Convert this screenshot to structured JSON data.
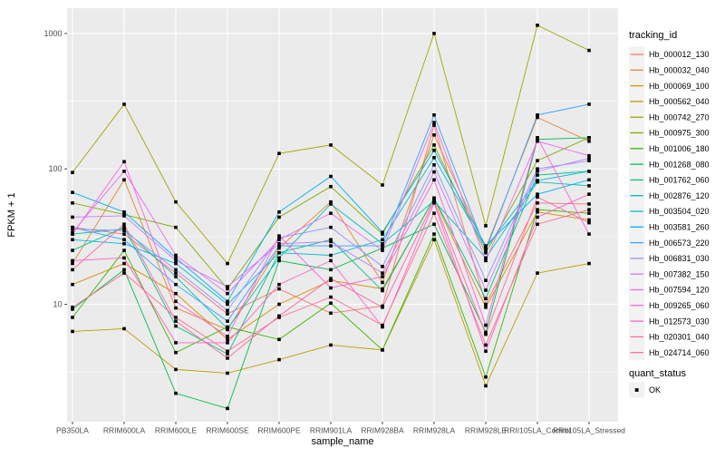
{
  "chart": {
    "y_axis_title": "FPKM + 1",
    "x_axis_title": "sample_name",
    "legend_title": "tracking_id",
    "legend2_title": "quant_status",
    "quant_status_label": "OK",
    "panel_bg": "#EBEBEB",
    "gridline_color": "#FFFFFF",
    "legend_key_bg": "#F2F2F2",
    "tick_label_color": "#4D4D4D",
    "point_color": "#000000"
  },
  "chart_data": {
    "type": "line",
    "x_scale": "categorical",
    "y_scale": "log10",
    "ylim": [
      1.4,
      1500
    ],
    "yticks": [
      10,
      100,
      1000
    ],
    "ytick_labels": [
      "10",
      "100",
      "1000"
    ],
    "grid": "on",
    "legend_position": "right",
    "title": "",
    "xlabel": "sample_name",
    "ylabel": "FPKM + 1",
    "categories": [
      "PB350LA",
      "RRIM600LA",
      "RRIM600LE",
      "RRIM600SE",
      "RRIM600PE",
      "RRIM901LA",
      "RRIM928BA",
      "RRIM928LA",
      "RRIM928LE",
      "RRII105LA_Control",
      "RRII105LA_Stressed"
    ],
    "quant_status_values": [
      "OK"
    ],
    "series": [
      {
        "name": "Hb_000012_130",
        "color": "#F8766D",
        "values": [
          37,
          33,
          17,
          8.5,
          13,
          8.6,
          9.7,
          210,
          10,
          56,
          55
        ]
      },
      {
        "name": "Hb_000032_040",
        "color": "#EA8331",
        "values": [
          20,
          83,
          9.4,
          6.5,
          26,
          57,
          14.5,
          178,
          26,
          240,
          160
        ]
      },
      {
        "name": "Hb_000069_100",
        "color": "#D89000",
        "values": [
          14,
          20,
          12,
          5.5,
          10,
          15,
          13,
          60,
          9.5,
          48,
          42
        ]
      },
      {
        "name": "Hb_000562_040",
        "color": "#C09B00",
        "values": [
          6.3,
          6.6,
          3.3,
          3.1,
          3.9,
          5.0,
          4.6,
          30,
          2.5,
          17,
          20
        ]
      },
      {
        "name": "Hb_000742_270",
        "color": "#A3A500",
        "values": [
          94,
          300,
          57,
          20,
          130,
          150,
          76,
          1000,
          38,
          1150,
          750
        ]
      },
      {
        "name": "Hb_000975_300",
        "color": "#7CAE00",
        "values": [
          56,
          46,
          37,
          13,
          44,
          74,
          33,
          150,
          24,
          115,
          170
        ]
      },
      {
        "name": "Hb_001006_180",
        "color": "#39B600",
        "values": [
          8,
          25,
          4.4,
          6.8,
          5.5,
          10.2,
          4.6,
          33,
          2.9,
          50,
          47
        ]
      },
      {
        "name": "Hb_001268_080",
        "color": "#00BB4E",
        "values": [
          9.2,
          18,
          2.2,
          1.7,
          21,
          18,
          26,
          39,
          6.2,
          165,
          170
        ]
      },
      {
        "name": "Hb_001762_060",
        "color": "#00C087",
        "values": [
          25,
          37,
          6.9,
          4.3,
          24,
          30,
          12.6,
          61,
          11,
          90,
          96
        ]
      },
      {
        "name": "Hb_002876_120",
        "color": "#00C0B5",
        "values": [
          33,
          36,
          16,
          6.6,
          22,
          55,
          28,
          58,
          22,
          80,
          75
        ]
      },
      {
        "name": "Hb_003504_020",
        "color": "#00BCD8",
        "values": [
          30,
          28,
          20,
          10,
          24,
          23,
          30,
          121,
          26,
          82,
          96
        ]
      },
      {
        "name": "Hb_003581_260",
        "color": "#00B0F6",
        "values": [
          67,
          48,
          22,
          10.5,
          48,
          88,
          34,
          137,
          27,
          65,
          83
        ]
      },
      {
        "name": "Hb_006573_220",
        "color": "#35A2FF",
        "values": [
          37,
          30,
          14,
          7.5,
          27,
          27,
          27,
          250,
          25,
          250,
          300
        ]
      },
      {
        "name": "Hb_006831_030",
        "color": "#9590FF",
        "values": [
          36,
          35,
          18,
          9,
          31,
          37,
          19,
          107,
          15,
          100,
          115
        ]
      },
      {
        "name": "Hb_007382_150",
        "color": "#C77CFF",
        "values": [
          44,
          45,
          21,
          13.5,
          28,
          29,
          17,
          95,
          12.7,
          96,
          120
        ]
      },
      {
        "name": "Hb_007594_120",
        "color": "#E76BF3",
        "values": [
          34,
          96,
          23,
          12,
          30,
          47,
          25,
          220,
          21,
          160,
          125
        ]
      },
      {
        "name": "Hb_009265_060",
        "color": "#FA62DB",
        "values": [
          33,
          113,
          10.5,
          5.8,
          32,
          13.2,
          16,
          83,
          7,
          170,
          33
        ]
      },
      {
        "name": "Hb_012573_030",
        "color": "#FF61C9",
        "values": [
          21,
          22,
          5.2,
          5.2,
          14,
          21,
          6.8,
          56,
          4.5,
          44,
          65
        ]
      },
      {
        "name": "Hb_020301_040",
        "color": "#FF66A8",
        "values": [
          18,
          39,
          7.5,
          4.0,
          8.2,
          15.5,
          9.5,
          58,
          6.0,
          62,
          40
        ]
      },
      {
        "name": "Hb_024714_060",
        "color": "#FF6C91",
        "values": [
          9.5,
          17,
          8.0,
          4.5,
          8.0,
          11.3,
          7.0,
          47,
          5.0,
          39,
          50
        ]
      }
    ]
  }
}
